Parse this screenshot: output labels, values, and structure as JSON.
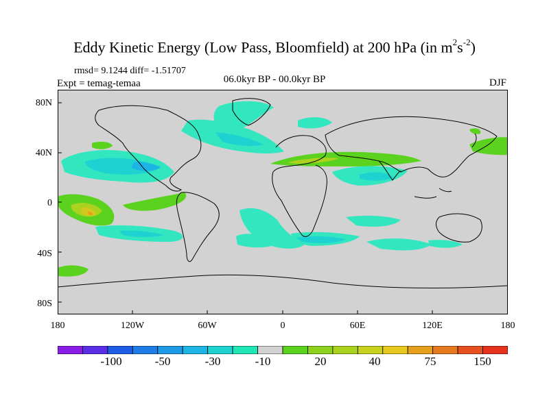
{
  "title": {
    "main": "Eddy Kinetic Energy (Low Pass, Bloomfield) at 200 hPa (in m",
    "sup1": "2",
    "mid": "s",
    "sup2": "-2",
    "end": ")"
  },
  "stats": "rmsd= 9.1244 diff= -1.51707",
  "experiment": "Expt = temag-temaa",
  "period": "06.0kyr BP - 00.0kyr BP",
  "season": "DJF",
  "lat_labels": [
    "80N",
    "40N",
    "0",
    "40S",
    "80S"
  ],
  "lon_labels": [
    "180",
    "120W",
    "60W",
    "0",
    "60E",
    "120E",
    "180"
  ],
  "colorbar": {
    "colors": [
      "#8a1ee6",
      "#5a2ee6",
      "#1e5ee6",
      "#1e7de6",
      "#1e9ae6",
      "#1eb4e6",
      "#1ed2d2",
      "#1ee6b4",
      "#d2d2d2",
      "#5ad21e",
      "#8cd21e",
      "#aad21e",
      "#c8d21e",
      "#e6c81e",
      "#e6a01e",
      "#e6781e",
      "#e6501e",
      "#e6321e"
    ],
    "labels": [
      "-100",
      "-50",
      "-30",
      "-10",
      "20",
      "40",
      "75",
      "150"
    ]
  },
  "colors": {
    "land_ocean_background": "#d2d2d2",
    "coast": "#000000",
    "teal": "#32e6c0",
    "cyan": "#1ed2d2",
    "blue": "#1eb4e6",
    "green": "#5ad21e",
    "yellow_green": "#aad21e",
    "yellow": "#d2c81e",
    "orange": "#e6a01e"
  }
}
